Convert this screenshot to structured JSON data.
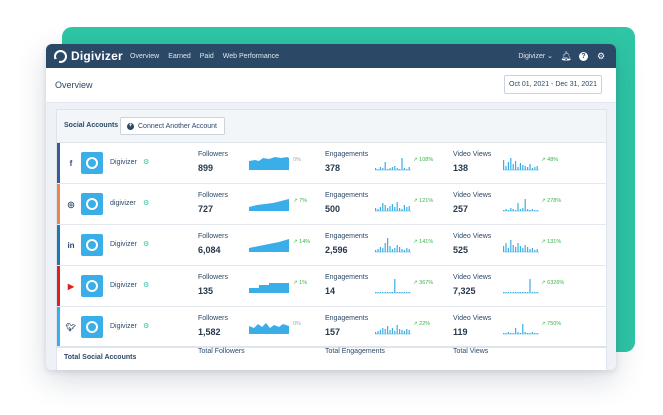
{
  "app": {
    "brand": "Digivizer"
  },
  "nav": [
    "Overview",
    "Earned",
    "Paid",
    "Web Performance"
  ],
  "topbar": {
    "account_label": "Digivizer ⌄"
  },
  "overview": {
    "title": "Overview",
    "date_range": "Oct 01, 2021 - Dec 31, 2021"
  },
  "panel": {
    "section_label": "Social Accounts",
    "connect_label": "Connect Another Account"
  },
  "metric_labels": {
    "followers": "Followers",
    "engagements": "Engagements",
    "video_views": "Video Views"
  },
  "accounts": [
    {
      "network": "facebook",
      "name": "Digivizer",
      "followers": "899",
      "followers_pct": "0%",
      "engagements": "378",
      "engagements_pct": "↗ 108%",
      "video_views": "138",
      "video_views_pct": "↗ 48%"
    },
    {
      "network": "instagram",
      "name": "digivizer",
      "followers": "727",
      "followers_pct": "↗ 7%",
      "engagements": "500",
      "engagements_pct": "↗ 121%",
      "video_views": "257",
      "video_views_pct": "↗ 278%"
    },
    {
      "network": "linkedin",
      "name": "Digivizer",
      "followers": "6,084",
      "followers_pct": "↗ 14%",
      "engagements": "2,596",
      "engagements_pct": "↗ 141%",
      "video_views": "525",
      "video_views_pct": "↗ 131%"
    },
    {
      "network": "youtube",
      "name": "Digivizer",
      "followers": "135",
      "followers_pct": "↗ 1%",
      "engagements": "14",
      "engagements_pct": "↗ 367%",
      "video_views": "7,325",
      "video_views_pct": "↗ 6326%"
    },
    {
      "network": "twitter",
      "name": "Digivizer",
      "followers": "1,582",
      "followers_pct": "0%",
      "engagements": "157",
      "engagements_pct": "↗ 22%",
      "video_views": "119",
      "video_views_pct": "↗ 750%"
    }
  ],
  "totals": {
    "accounts": "Total Social Accounts",
    "followers": "Total Followers",
    "engagements": "Total Engagements",
    "views": "Total Views"
  },
  "colors": {
    "navbar": "#2b4867",
    "accent_teal": "#2ec6a5",
    "chart_blue": "#3aaee8",
    "positive_green": "#39b54a",
    "facebook": "#3b5998",
    "instagram": "#f0834b",
    "linkedin": "#1f77b4",
    "youtube": "#e0201c",
    "twitter": "#3aaee8"
  },
  "icons": {
    "facebook": "facebook-icon",
    "instagram": "instagram-icon",
    "linkedin": "linkedin-icon",
    "youtube": "youtube-icon",
    "twitter": "twitter-icon",
    "bell": "bell-icon",
    "help": "help-icon",
    "settings": "gear-icon"
  }
}
